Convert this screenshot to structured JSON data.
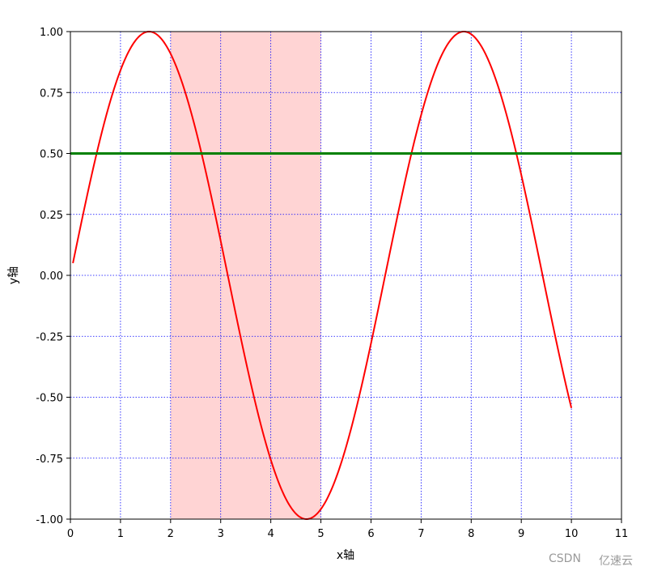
{
  "chart_data": {
    "type": "line",
    "xlabel": "x轴",
    "ylabel": "y轴",
    "xlim": [
      0,
      11
    ],
    "ylim": [
      -1.0,
      1.0
    ],
    "x_ticks": [
      0,
      1,
      2,
      3,
      4,
      5,
      6,
      7,
      8,
      9,
      10,
      11
    ],
    "y_ticks": [
      -1.0,
      -0.75,
      -0.5,
      -0.25,
      0.0,
      0.25,
      0.5,
      0.75,
      1.0
    ],
    "x_tick_labels": [
      "0",
      "1",
      "2",
      "3",
      "4",
      "5",
      "6",
      "7",
      "8",
      "9",
      "10",
      "11"
    ],
    "y_tick_labels": [
      "-1.00",
      "-0.75",
      "-0.50",
      "-0.25",
      "0.00",
      "0.25",
      "0.50",
      "0.75",
      "1.00"
    ],
    "grid": true,
    "grid_color": "#0000ff",
    "series": [
      {
        "color": "#ff0000",
        "x_range": [
          0.05,
          10.0
        ],
        "function": "sin(x)"
      }
    ],
    "horizontal_lines": [
      {
        "y": 0.5,
        "color": "#008000"
      }
    ],
    "shaded_spans": [
      {
        "x_start": 2,
        "x_end": 5,
        "color": "#ff0000"
      }
    ]
  },
  "watermark": {
    "left": "CSDN",
    "right": "亿速云"
  }
}
